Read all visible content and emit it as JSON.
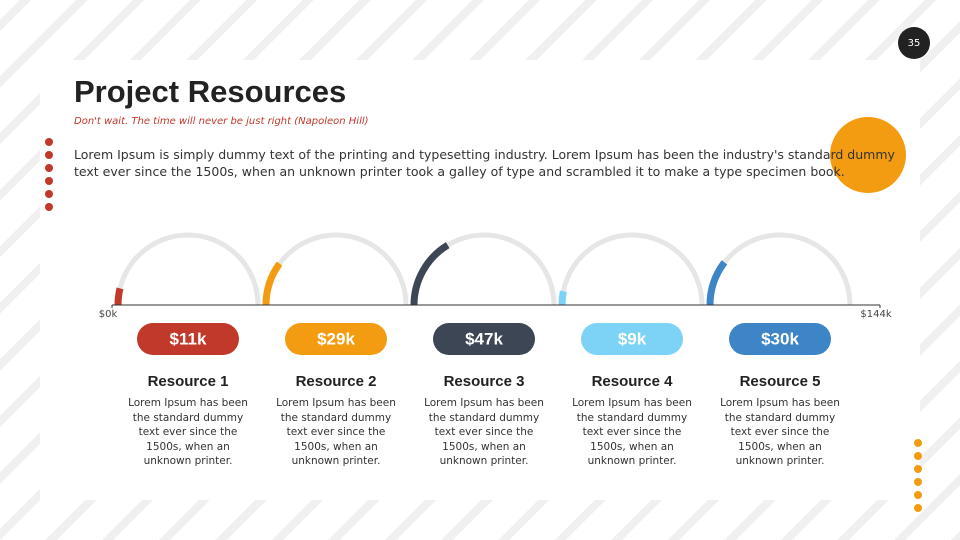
{
  "page_number": "35",
  "header": {
    "title": "Project Resources",
    "quote": "Don't wait. The time will never be just right (Napoleon Hill)",
    "body": "Lorem Ipsum is simply dummy text of the printing and typesetting industry. Lorem Ipsum has been the industry's standard dummy text ever since the 1500s, when an unknown printer took a galley of type and scrambled it to make a type specimen book."
  },
  "chart_data": {
    "type": "gauge",
    "categories": [
      "Resource 1",
      "Resource 2",
      "Resource 3",
      "Resource 4",
      "Resource 5"
    ],
    "values": [
      11,
      29,
      47,
      9,
      30
    ],
    "value_labels": [
      "$11k",
      "$29k",
      "$47k",
      "$9k",
      "$30k"
    ],
    "colors": [
      "#c0392b",
      "#f39c12",
      "#3d4654",
      "#7dd3f5",
      "#3d85c6"
    ],
    "descriptions": [
      "Lorem Ipsum has been the standard dummy text ever since the 1500s, when an unknown printer.",
      "Lorem Ipsum has been the standard dummy text ever since the 1500s, when an unknown printer.",
      "Lorem Ipsum has been the standard dummy text ever since the 1500s, when an unknown printer.",
      "Lorem Ipsum has been the standard dummy text ever since the 1500s, when an unknown printer.",
      "Lorem Ipsum has been the standard dummy text ever since the 1500s, when an unknown printer."
    ],
    "xlim": [
      0,
      144
    ],
    "xticks": [
      {
        "value": 0,
        "label": "$0k"
      },
      {
        "value": 144,
        "label": "$144k"
      }
    ]
  }
}
